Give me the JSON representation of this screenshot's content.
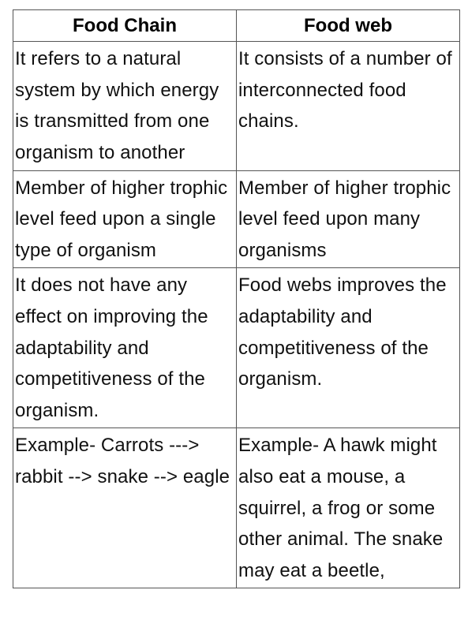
{
  "table": {
    "columns": [
      "Food Chain",
      "Food web"
    ],
    "rows": [
      [
        "It refers to a natural system by which energy is transmitted from one organism to another",
        "It consists of a number of interconnected food chains."
      ],
      [
        "Member of higher trophic level feed upon a single type of organism",
        "Member of higher trophic level feed upon many organisms"
      ],
      [
        "It does not have any effect on improving the adaptability and competitiveness of the organism.",
        "Food webs improves the adaptability and competitiveness of the organism."
      ],
      [
        "Example- Carrots ---> rabbit --> snake --> eagle",
        "Example- A hawk might also eat a mouse, a squirrel, a frog or some other animal. The snake may eat a beetle,"
      ]
    ],
    "column_widths": [
      "50%",
      "50%"
    ],
    "header_fontsize": 24,
    "cell_fontsize": 24,
    "line_height": 1.65,
    "border_color": "#555555",
    "background_color": "#ffffff",
    "text_color": "#111111"
  }
}
